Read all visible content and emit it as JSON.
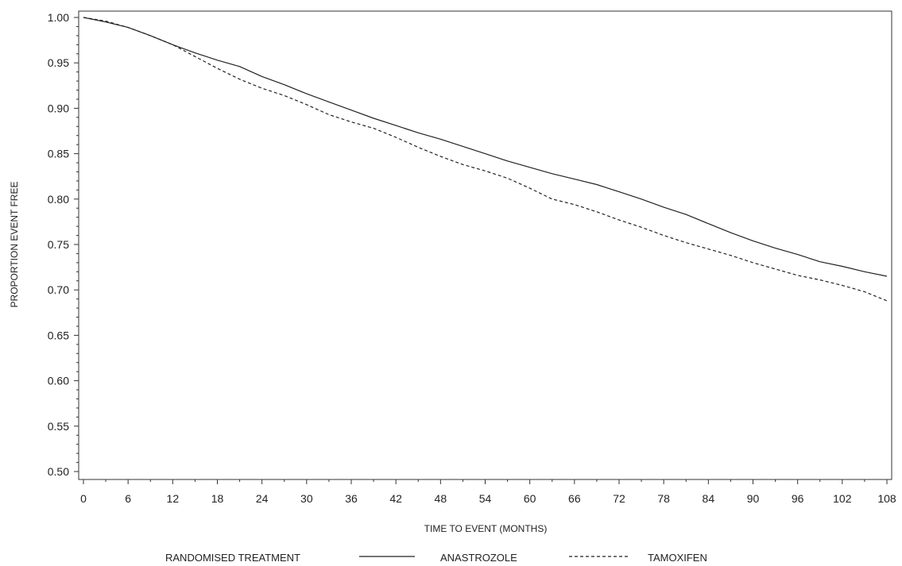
{
  "chart_data": {
    "type": "line",
    "title": "",
    "xlabel": "TIME TO EVENT (MONTHS)",
    "ylabel": "PROPORTION EVENT FREE",
    "xlim": [
      0,
      108
    ],
    "ylim": [
      0.5,
      1.0
    ],
    "x_ticks": [
      "0",
      "6",
      "12",
      "18",
      "24",
      "30",
      "36",
      "42",
      "48",
      "54",
      "60",
      "66",
      "72",
      "78",
      "84",
      "90",
      "96",
      "102",
      "108"
    ],
    "y_ticks": [
      "0.50",
      "0.55",
      "0.60",
      "0.65",
      "0.70",
      "0.75",
      "0.80",
      "0.85",
      "0.90",
      "0.95",
      "1.00"
    ],
    "grid": false,
    "legend": {
      "title": "RANDOMISED TREATMENT",
      "placement": "bottom"
    },
    "series": [
      {
        "name": "ANASTROZOLE",
        "style": "solid",
        "color": "#222222",
        "x": [
          0,
          3,
          6,
          9,
          12,
          15,
          18,
          21,
          24,
          27,
          30,
          33,
          36,
          39,
          42,
          45,
          48,
          51,
          54,
          57,
          60,
          63,
          66,
          69,
          72,
          75,
          78,
          81,
          84,
          87,
          90,
          93,
          96,
          99,
          102,
          105,
          108
        ],
        "y": [
          1.0,
          0.995,
          0.989,
          0.98,
          0.97,
          0.961,
          0.953,
          0.946,
          0.935,
          0.926,
          0.916,
          0.907,
          0.898,
          0.889,
          0.881,
          0.873,
          0.866,
          0.858,
          0.85,
          0.842,
          0.835,
          0.828,
          0.822,
          0.816,
          0.808,
          0.8,
          0.791,
          0.783,
          0.773,
          0.763,
          0.754,
          0.746,
          0.739,
          0.731,
          0.726,
          0.72,
          0.715
        ]
      },
      {
        "name": "TAMOXIFEN",
        "style": "dashed",
        "color": "#222222",
        "x": [
          0,
          3,
          6,
          9,
          12,
          15,
          18,
          21,
          24,
          27,
          30,
          33,
          36,
          39,
          42,
          45,
          48,
          51,
          54,
          57,
          60,
          63,
          66,
          69,
          72,
          75,
          78,
          81,
          84,
          87,
          90,
          93,
          96,
          99,
          102,
          105,
          108
        ],
        "y": [
          1.0,
          0.996,
          0.989,
          0.98,
          0.97,
          0.957,
          0.944,
          0.932,
          0.922,
          0.914,
          0.904,
          0.893,
          0.885,
          0.878,
          0.868,
          0.857,
          0.847,
          0.838,
          0.831,
          0.823,
          0.812,
          0.8,
          0.794,
          0.786,
          0.777,
          0.769,
          0.76,
          0.752,
          0.745,
          0.738,
          0.73,
          0.723,
          0.716,
          0.711,
          0.705,
          0.698,
          0.688
        ]
      }
    ]
  }
}
